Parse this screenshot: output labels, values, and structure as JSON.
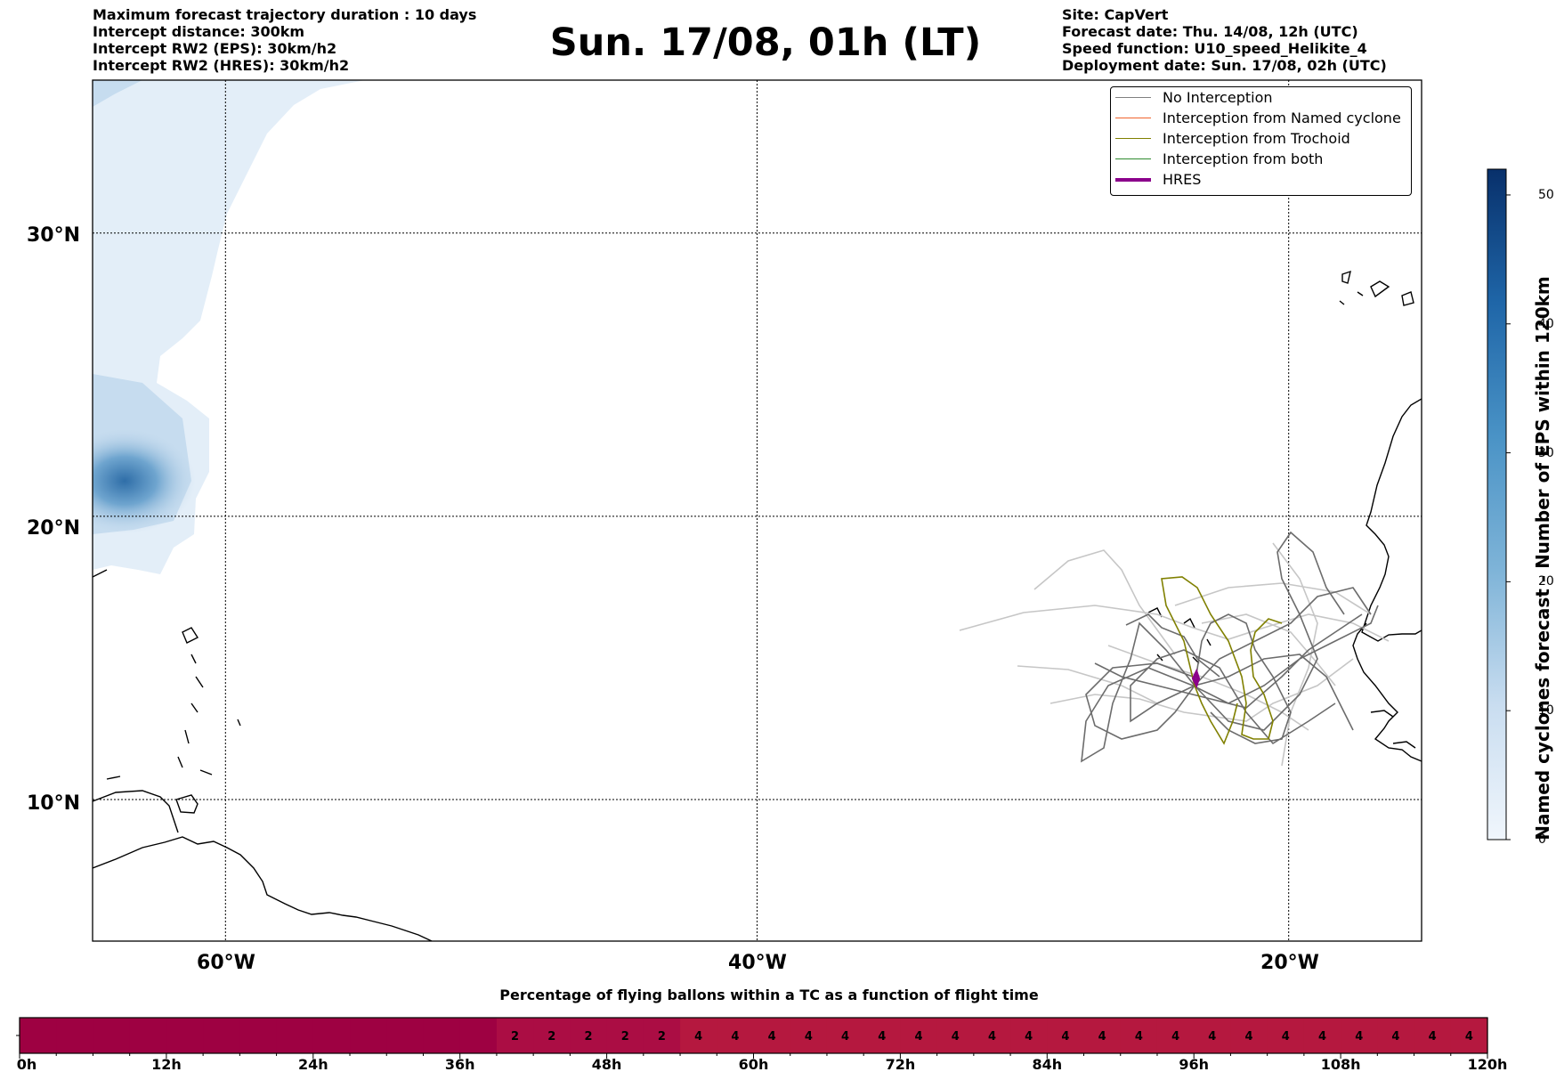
{
  "title": "Sun. 17/08, 01h (LT)",
  "info_left": [
    "Maximum forecast trajectory duration : 10 days",
    "Intercept distance: 300km",
    "Intercept RW2 (EPS):  30km/h2",
    "Intercept RW2 (HRES): 30km/h2"
  ],
  "info_right": [
    "Site: CapVert",
    "Forecast date: Thu. 14/08, 12h (UTC)",
    "Speed function: U10_speed_Helikite_4",
    "Deployment date: Sun. 17/08, 02h (UTC)"
  ],
  "map": {
    "lat_labels": [
      "30°N",
      "20°N",
      "10°N"
    ],
    "lon_labels": [
      "60°W",
      "40°W",
      "20°W"
    ],
    "lat_values": [
      30,
      20,
      10
    ],
    "lon_values": [
      -60,
      -40,
      -20
    ],
    "extent": {
      "lon_min": -65,
      "lon_max": -15,
      "lat_min": 5,
      "lat_max": 35.4
    },
    "site": {
      "lat": 14.8,
      "lon": -23.5
    },
    "legend": [
      {
        "label": "No Interception",
        "color": "#808080"
      },
      {
        "label": "Interception from Named cyclone",
        "color": "#f0642d"
      },
      {
        "label": "Interception from Trochoid",
        "color": "#808000"
      },
      {
        "label": "Interception from both",
        "color": "#2e8b2e"
      },
      {
        "label": "HRES",
        "color": "#8b008b"
      }
    ]
  },
  "colorbar": {
    "label": "Named cyclones forecast - Number of EPS within 120km",
    "ticks": [
      0,
      10,
      20,
      30,
      40,
      50
    ],
    "min": 0,
    "max": 52
  },
  "chart_data": {
    "type": "heatmap",
    "title": "Percentage of flying ballons within a TC as a function of flight time",
    "x_tick_labels": [
      "0h",
      "12h",
      "24h",
      "36h",
      "48h",
      "60h",
      "72h",
      "84h",
      "96h",
      "108h",
      "120h"
    ],
    "bin_hours": 3,
    "values": [
      0,
      0,
      0,
      0,
      0,
      0,
      0,
      0,
      0,
      0,
      0,
      0,
      0,
      2,
      2,
      2,
      2,
      2,
      4,
      4,
      4,
      4,
      4,
      4,
      4,
      4,
      4,
      4,
      4,
      4,
      4,
      4,
      4,
      4,
      4,
      4,
      4,
      4,
      4,
      4
    ],
    "value_labels": [
      "",
      "",
      "",
      "",
      "",
      "",
      "",
      "",
      "",
      "",
      "",
      "",
      "",
      "2",
      "2",
      "2",
      "2",
      "2",
      "4",
      "4",
      "4",
      "4",
      "4",
      "4",
      "4",
      "4",
      "4",
      "4",
      "4",
      "4",
      "4",
      "4",
      "4",
      "4",
      "4",
      "4",
      "4",
      "4",
      "4",
      "4"
    ],
    "colors": {
      "0": "#9e0142",
      "2": "#ab0d44",
      "4": "#b5183f"
    }
  }
}
